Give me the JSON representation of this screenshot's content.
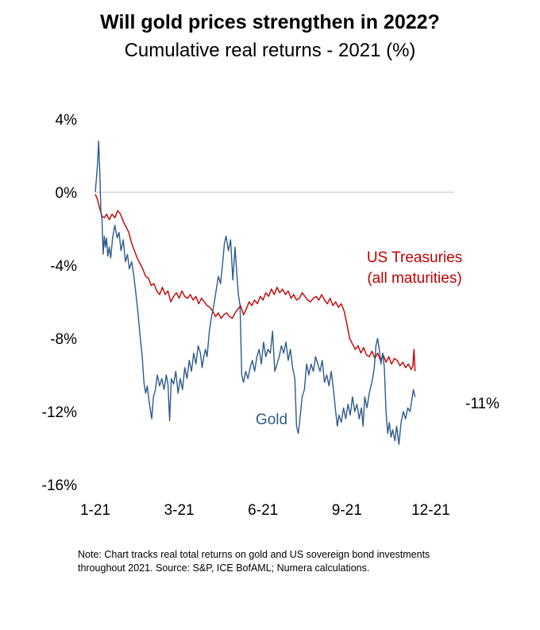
{
  "title": "Will gold prices strengthen in 2022?",
  "subtitle": "Cumulative real returns - 2021 (%)",
  "note": "Note: Chart tracks real total returns on gold and US sovereign bond investments throughout 2021. Source: S&P, ICE BofAML; Numera calculations.",
  "colors": {
    "gold": "#2e5b8a",
    "treasuries": "#c00000",
    "zero_line": "#bfbfbf"
  },
  "chart_data": {
    "type": "line",
    "title": "Will gold prices strengthen in 2022?",
    "subtitle": "Cumulative real returns - 2021 (%)",
    "xlabel": "",
    "ylabel": "",
    "xlim": [
      0,
      11.5
    ],
    "ylim": [
      -16,
      4
    ],
    "x_ticks": [
      {
        "x": 0,
        "label": "1-21"
      },
      {
        "x": 3,
        "label": "3-21"
      },
      {
        "x": 6,
        "label": "6-21"
      },
      {
        "x": 9,
        "label": "9-21"
      },
      {
        "x": 12,
        "label": "12-21"
      }
    ],
    "y_ticks": [
      {
        "y": 4,
        "label": "4%"
      },
      {
        "y": 0,
        "label": "0%"
      },
      {
        "y": -4,
        "label": "-4%"
      },
      {
        "y": -8,
        "label": "-8%"
      },
      {
        "y": -12,
        "label": "-12%"
      },
      {
        "y": -16,
        "label": "-16%"
      }
    ],
    "zero_line": true,
    "grid": false,
    "series": [
      {
        "name": "Gold",
        "color": "#2e5b8a",
        "points": [
          [
            0.0,
            0.0
          ],
          [
            0.08,
            1.5
          ],
          [
            0.12,
            2.8
          ],
          [
            0.16,
            1.2
          ],
          [
            0.2,
            -1.0
          ],
          [
            0.24,
            -1.5
          ],
          [
            0.28,
            -3.4
          ],
          [
            0.32,
            -2.4
          ],
          [
            0.36,
            -3.0
          ],
          [
            0.4,
            -2.5
          ],
          [
            0.45,
            -3.5
          ],
          [
            0.5,
            -3.0
          ],
          [
            0.55,
            -3.6
          ],
          [
            0.62,
            -2.5
          ],
          [
            0.7,
            -1.8
          ],
          [
            0.78,
            -2.5
          ],
          [
            0.85,
            -2.2
          ],
          [
            0.92,
            -3.2
          ],
          [
            1.0,
            -2.6
          ],
          [
            1.08,
            -3.8
          ],
          [
            1.15,
            -3.4
          ],
          [
            1.22,
            -4.2
          ],
          [
            1.3,
            -3.8
          ],
          [
            1.38,
            -4.6
          ],
          [
            1.45,
            -5.5
          ],
          [
            1.52,
            -6.5
          ],
          [
            1.6,
            -7.8
          ],
          [
            1.68,
            -9.0
          ],
          [
            1.74,
            -10.4
          ],
          [
            1.8,
            -11.0
          ],
          [
            1.86,
            -10.6
          ],
          [
            1.92,
            -11.4
          ],
          [
            1.98,
            -12.0
          ],
          [
            2.02,
            -12.4
          ],
          [
            2.08,
            -11.2
          ],
          [
            2.15,
            -10.8
          ],
          [
            2.22,
            -10.0
          ],
          [
            2.3,
            -10.6
          ],
          [
            2.38,
            -10.2
          ],
          [
            2.46,
            -10.8
          ],
          [
            2.54,
            -10.0
          ],
          [
            2.6,
            -10.5
          ],
          [
            2.66,
            -12.5
          ],
          [
            2.72,
            -10.2
          ],
          [
            2.8,
            -10.5
          ],
          [
            2.88,
            -9.8
          ],
          [
            2.96,
            -11.0
          ],
          [
            3.04,
            -10.2
          ],
          [
            3.12,
            -10.8
          ],
          [
            3.2,
            -9.6
          ],
          [
            3.28,
            -10.2
          ],
          [
            3.36,
            -9.2
          ],
          [
            3.44,
            -9.8
          ],
          [
            3.52,
            -8.8
          ],
          [
            3.6,
            -9.4
          ],
          [
            3.68,
            -8.4
          ],
          [
            3.76,
            -8.8
          ],
          [
            3.82,
            -9.6
          ],
          [
            3.88,
            -9.0
          ],
          [
            3.94,
            -8.6
          ],
          [
            4.0,
            -9.0
          ],
          [
            4.08,
            -7.6
          ],
          [
            4.16,
            -6.8
          ],
          [
            4.24,
            -6.2
          ],
          [
            4.32,
            -5.4
          ],
          [
            4.4,
            -4.6
          ],
          [
            4.48,
            -5.0
          ],
          [
            4.56,
            -3.8
          ],
          [
            4.62,
            -2.8
          ],
          [
            4.68,
            -2.4
          ],
          [
            4.76,
            -3.2
          ],
          [
            4.84,
            -2.6
          ],
          [
            4.92,
            -4.8
          ],
          [
            5.0,
            -3.0
          ],
          [
            5.06,
            -4.4
          ],
          [
            5.12,
            -5.6
          ],
          [
            5.18,
            -6.2
          ],
          [
            5.24,
            -10.0
          ],
          [
            5.3,
            -10.4
          ],
          [
            5.38,
            -9.8
          ],
          [
            5.46,
            -10.2
          ],
          [
            5.54,
            -9.6
          ],
          [
            5.62,
            -9.2
          ],
          [
            5.7,
            -9.8
          ],
          [
            5.78,
            -9.0
          ],
          [
            5.86,
            -8.6
          ],
          [
            5.94,
            -9.4
          ],
          [
            6.02,
            -8.2
          ],
          [
            6.1,
            -9.0
          ],
          [
            6.18,
            -8.6
          ],
          [
            6.26,
            -8.8
          ],
          [
            6.34,
            -7.6
          ],
          [
            6.42,
            -9.8
          ],
          [
            6.5,
            -9.4
          ],
          [
            6.58,
            -9.0
          ],
          [
            6.66,
            -8.4
          ],
          [
            6.74,
            -8.8
          ],
          [
            6.82,
            -8.2
          ],
          [
            6.9,
            -9.2
          ],
          [
            6.98,
            -8.6
          ],
          [
            7.06,
            -9.6
          ],
          [
            7.14,
            -10.2
          ],
          [
            7.2,
            -12.8
          ],
          [
            7.26,
            -13.2
          ],
          [
            7.32,
            -12.4
          ],
          [
            7.4,
            -11.2
          ],
          [
            7.48,
            -10.8
          ],
          [
            7.56,
            -9.4
          ],
          [
            7.64,
            -10.0
          ],
          [
            7.72,
            -9.4
          ],
          [
            7.8,
            -9.8
          ],
          [
            7.88,
            -9.0
          ],
          [
            7.96,
            -9.4
          ],
          [
            8.04,
            -9.8
          ],
          [
            8.12,
            -9.2
          ],
          [
            8.2,
            -10.4
          ],
          [
            8.28,
            -10.0
          ],
          [
            8.36,
            -10.6
          ],
          [
            8.44,
            -9.8
          ],
          [
            8.52,
            -10.8
          ],
          [
            8.6,
            -12.0
          ],
          [
            8.66,
            -12.8
          ],
          [
            8.72,
            -12.2
          ],
          [
            8.8,
            -12.6
          ],
          [
            8.88,
            -11.8
          ],
          [
            8.96,
            -12.4
          ],
          [
            9.04,
            -11.6
          ],
          [
            9.12,
            -12.2
          ],
          [
            9.2,
            -11.2
          ],
          [
            9.28,
            -12.0
          ],
          [
            9.36,
            -11.6
          ],
          [
            9.44,
            -12.4
          ],
          [
            9.52,
            -11.8
          ],
          [
            9.58,
            -12.8
          ],
          [
            9.64,
            -11.2
          ],
          [
            9.72,
            -11.8
          ],
          [
            9.8,
            -11.0
          ],
          [
            9.86,
            -10.6
          ],
          [
            9.92,
            -10.2
          ],
          [
            9.98,
            -9.6
          ],
          [
            10.04,
            -8.4
          ],
          [
            10.1,
            -8.0
          ],
          [
            10.16,
            -8.6
          ],
          [
            10.22,
            -9.4
          ],
          [
            10.28,
            -8.8
          ],
          [
            10.34,
            -9.6
          ],
          [
            10.4,
            -12.0
          ],
          [
            10.46,
            -13.2
          ],
          [
            10.52,
            -12.6
          ],
          [
            10.58,
            -13.4
          ],
          [
            10.64,
            -13.0
          ],
          [
            10.72,
            -13.6
          ],
          [
            10.78,
            -12.8
          ],
          [
            10.86,
            -13.8
          ],
          [
            10.94,
            -12.6
          ],
          [
            11.02,
            -12.0
          ],
          [
            11.1,
            -12.4
          ],
          [
            11.18,
            -11.8
          ],
          [
            11.26,
            -12.0
          ],
          [
            11.32,
            -11.4
          ],
          [
            11.38,
            -10.8
          ],
          [
            11.44,
            -11.2
          ]
        ]
      },
      {
        "name": "US Treasuries",
        "label": "US Treasuries (all maturities)",
        "color": "#c00000",
        "points": [
          [
            0.0,
            -0.1
          ],
          [
            0.08,
            -0.4
          ],
          [
            0.16,
            -0.9
          ],
          [
            0.24,
            -1.3
          ],
          [
            0.32,
            -1.4
          ],
          [
            0.4,
            -1.2
          ],
          [
            0.5,
            -1.5
          ],
          [
            0.6,
            -1.2
          ],
          [
            0.7,
            -1.4
          ],
          [
            0.8,
            -1.0
          ],
          [
            0.9,
            -1.2
          ],
          [
            1.0,
            -1.6
          ],
          [
            1.1,
            -1.9
          ],
          [
            1.2,
            -2.2
          ],
          [
            1.3,
            -2.8
          ],
          [
            1.4,
            -3.2
          ],
          [
            1.5,
            -3.6
          ],
          [
            1.6,
            -3.9
          ],
          [
            1.7,
            -4.2
          ],
          [
            1.8,
            -4.6
          ],
          [
            1.9,
            -4.7
          ],
          [
            2.0,
            -5.1
          ],
          [
            2.1,
            -5.0
          ],
          [
            2.2,
            -5.4
          ],
          [
            2.3,
            -5.6
          ],
          [
            2.4,
            -5.2
          ],
          [
            2.5,
            -5.6
          ],
          [
            2.6,
            -5.4
          ],
          [
            2.7,
            -6.0
          ],
          [
            2.8,
            -5.7
          ],
          [
            2.9,
            -5.5
          ],
          [
            3.0,
            -5.8
          ],
          [
            3.1,
            -5.4
          ],
          [
            3.2,
            -5.7
          ],
          [
            3.3,
            -5.8
          ],
          [
            3.4,
            -5.6
          ],
          [
            3.5,
            -5.9
          ],
          [
            3.6,
            -5.7
          ],
          [
            3.7,
            -6.1
          ],
          [
            3.8,
            -5.8
          ],
          [
            3.9,
            -6.0
          ],
          [
            4.0,
            -6.2
          ],
          [
            4.1,
            -6.3
          ],
          [
            4.2,
            -6.5
          ],
          [
            4.3,
            -6.8
          ],
          [
            4.4,
            -6.6
          ],
          [
            4.5,
            -6.9
          ],
          [
            4.6,
            -6.7
          ],
          [
            4.7,
            -6.6
          ],
          [
            4.8,
            -6.8
          ],
          [
            4.9,
            -6.9
          ],
          [
            5.0,
            -6.6
          ],
          [
            5.1,
            -6.4
          ],
          [
            5.2,
            -6.2
          ],
          [
            5.3,
            -6.7
          ],
          [
            5.4,
            -6.4
          ],
          [
            5.5,
            -6.0
          ],
          [
            5.6,
            -6.2
          ],
          [
            5.7,
            -5.9
          ],
          [
            5.8,
            -6.1
          ],
          [
            5.9,
            -5.7
          ],
          [
            6.0,
            -5.9
          ],
          [
            6.1,
            -5.5
          ],
          [
            6.2,
            -5.7
          ],
          [
            6.3,
            -5.3
          ],
          [
            6.4,
            -5.6
          ],
          [
            6.5,
            -5.2
          ],
          [
            6.6,
            -5.5
          ],
          [
            6.7,
            -5.3
          ],
          [
            6.8,
            -5.6
          ],
          [
            6.9,
            -5.4
          ],
          [
            7.0,
            -5.8
          ],
          [
            7.1,
            -5.6
          ],
          [
            7.2,
            -5.9
          ],
          [
            7.3,
            -5.8
          ],
          [
            7.4,
            -5.5
          ],
          [
            7.5,
            -5.7
          ],
          [
            7.6,
            -5.9
          ],
          [
            7.7,
            -6.0
          ],
          [
            7.8,
            -5.8
          ],
          [
            7.9,
            -5.7
          ],
          [
            8.0,
            -5.9
          ],
          [
            8.1,
            -5.6
          ],
          [
            8.2,
            -5.9
          ],
          [
            8.3,
            -6.1
          ],
          [
            8.4,
            -5.8
          ],
          [
            8.5,
            -6.2
          ],
          [
            8.6,
            -6.0
          ],
          [
            8.7,
            -6.3
          ],
          [
            8.8,
            -6.1
          ],
          [
            8.9,
            -6.5
          ],
          [
            9.0,
            -7.2
          ],
          [
            9.1,
            -8.0
          ],
          [
            9.2,
            -8.3
          ],
          [
            9.3,
            -8.6
          ],
          [
            9.4,
            -8.4
          ],
          [
            9.5,
            -8.8
          ],
          [
            9.6,
            -8.5
          ],
          [
            9.7,
            -8.9
          ],
          [
            9.8,
            -9.0
          ],
          [
            9.9,
            -8.7
          ],
          [
            10.0,
            -9.1
          ],
          [
            10.1,
            -8.8
          ],
          [
            10.2,
            -9.2
          ],
          [
            10.3,
            -8.9
          ],
          [
            10.4,
            -9.3
          ],
          [
            10.5,
            -9.0
          ],
          [
            10.6,
            -9.4
          ],
          [
            10.7,
            -9.1
          ],
          [
            10.8,
            -9.2
          ],
          [
            10.9,
            -9.5
          ],
          [
            11.0,
            -9.3
          ],
          [
            11.1,
            -9.6
          ],
          [
            11.2,
            -9.4
          ],
          [
            11.3,
            -9.7
          ],
          [
            11.36,
            -9.5
          ],
          [
            11.4,
            -8.6
          ],
          [
            11.44,
            -9.8
          ]
        ]
      }
    ],
    "annotations": [
      {
        "text": "Gold",
        "series": "Gold"
      },
      {
        "text": "US Treasuries",
        "series": "US Treasuries"
      },
      {
        "text": "(all maturities)",
        "series": "US Treasuries"
      },
      {
        "text": "-11%",
        "series": "Gold",
        "note": "end value"
      }
    ]
  }
}
